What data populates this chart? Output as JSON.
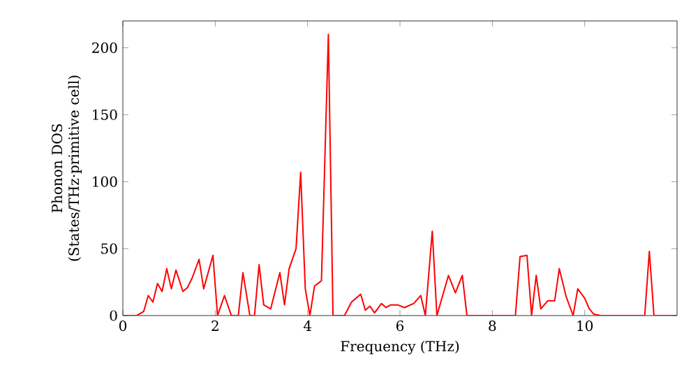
{
  "chart_data": {
    "type": "line",
    "xlabel": "Frequency (THz)",
    "ylabel": "Phonon DOS (States/THz·primitive cell)",
    "xlim": [
      0,
      12
    ],
    "ylim": [
      0,
      220
    ],
    "xticks": [
      0,
      2,
      4,
      6,
      8,
      10
    ],
    "yticks": [
      0,
      50,
      100,
      150,
      200
    ],
    "grid": false,
    "marker": "none",
    "line_style": "solid",
    "x": [
      0,
      0.3,
      0.45,
      0.55,
      0.65,
      0.75,
      0.85,
      0.95,
      1.05,
      1.15,
      1.3,
      1.4,
      1.5,
      1.65,
      1.75,
      1.95,
      2.05,
      2.2,
      2.35,
      2.5,
      2.6,
      2.75,
      2.85,
      2.95,
      3.05,
      3.2,
      3.4,
      3.5,
      3.6,
      3.75,
      3.85,
      3.95,
      4.05,
      4.15,
      4.3,
      4.45,
      4.55,
      4.8,
      4.95,
      5.15,
      5.25,
      5.35,
      5.45,
      5.6,
      5.7,
      5.8,
      5.95,
      6.1,
      6.3,
      6.45,
      6.55,
      6.7,
      6.8,
      6.95,
      7.05,
      7.2,
      7.35,
      7.45,
      8.5,
      8.6,
      8.75,
      8.85,
      8.95,
      9.05,
      9.2,
      9.35,
      9.45,
      9.6,
      9.75,
      9.85,
      10.0,
      10.1,
      10.2,
      10.35,
      11.3,
      11.4,
      11.5,
      12
    ],
    "series": [
      {
        "color": "#ff0000",
        "values": [
          0,
          0,
          3,
          15,
          10,
          24,
          18,
          35,
          20,
          34,
          18,
          21,
          28,
          42,
          20,
          45,
          0,
          15,
          0,
          0,
          32,
          0,
          0,
          38,
          8,
          5,
          32,
          8,
          35,
          50,
          107,
          20,
          0,
          22,
          26,
          210,
          0,
          0,
          10,
          16,
          4,
          7,
          2,
          9,
          6,
          8,
          8,
          6,
          9,
          15,
          0,
          63,
          0,
          18,
          30,
          17,
          30,
          0,
          0,
          44,
          45,
          0,
          30,
          5,
          11,
          11,
          35,
          14,
          0,
          20,
          13,
          5,
          1,
          0,
          0,
          48,
          0,
          0
        ]
      }
    ]
  }
}
